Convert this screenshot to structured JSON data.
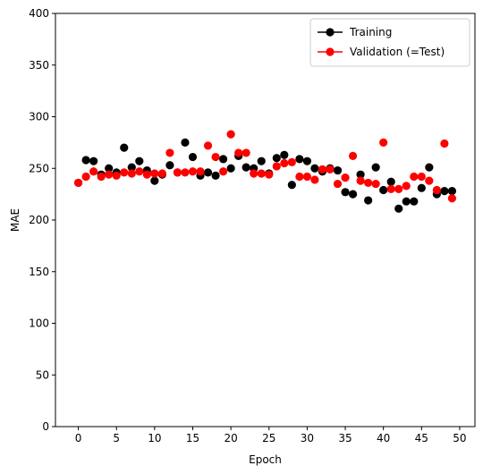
{
  "chart_data": {
    "type": "scatter",
    "title": "",
    "xlabel": "Epoch",
    "ylabel": "MAE",
    "xlim": [
      -3,
      52
    ],
    "ylim": [
      0,
      400
    ],
    "x_ticks": [
      0,
      5,
      10,
      15,
      20,
      25,
      30,
      35,
      40,
      45,
      50
    ],
    "y_ticks": [
      0,
      50,
      100,
      150,
      200,
      250,
      300,
      350,
      400
    ],
    "grid": false,
    "legend": {
      "placement": "top-right"
    },
    "series": [
      {
        "name": "Training",
        "color": "#000000",
        "x": [
          0,
          1,
          2,
          3,
          4,
          5,
          6,
          7,
          8,
          9,
          10,
          11,
          12,
          13,
          14,
          15,
          16,
          17,
          18,
          19,
          20,
          21,
          22,
          23,
          24,
          25,
          26,
          27,
          28,
          29,
          30,
          31,
          32,
          33,
          34,
          35,
          36,
          37,
          38,
          39,
          40,
          41,
          42,
          43,
          44,
          45,
          46,
          47,
          48,
          49
        ],
        "y": [
          236,
          258,
          257,
          244,
          250,
          246,
          270,
          251,
          257,
          248,
          238,
          244,
          253,
          246,
          275,
          261,
          243,
          246,
          243,
          259,
          250,
          262,
          251,
          250,
          257,
          245,
          260,
          263,
          234,
          259,
          257,
          250,
          247,
          250,
          248,
          227,
          225,
          244,
          219,
          251,
          229,
          237,
          211,
          218,
          218,
          231,
          251,
          225,
          228,
          228
        ]
      },
      {
        "name": "Validation (=Test)",
        "color": "#ff0000",
        "x": [
          0,
          1,
          2,
          3,
          4,
          5,
          6,
          7,
          8,
          9,
          10,
          11,
          12,
          13,
          14,
          15,
          16,
          17,
          18,
          19,
          20,
          21,
          22,
          23,
          24,
          25,
          26,
          27,
          28,
          29,
          30,
          31,
          32,
          33,
          34,
          35,
          36,
          37,
          38,
          39,
          40,
          41,
          42,
          43,
          44,
          45,
          46,
          47,
          48,
          49
        ],
        "y": [
          236,
          242,
          247,
          242,
          244,
          243,
          246,
          245,
          247,
          244,
          245,
          245,
          265,
          246,
          246,
          247,
          247,
          272,
          261,
          247,
          283,
          265,
          265,
          245,
          245,
          244,
          252,
          255,
          256,
          242,
          242,
          239,
          249,
          249,
          235,
          241,
          262,
          238,
          236,
          235,
          275,
          230,
          230,
          233,
          242,
          242,
          238,
          229,
          274,
          221
        ]
      }
    ]
  }
}
